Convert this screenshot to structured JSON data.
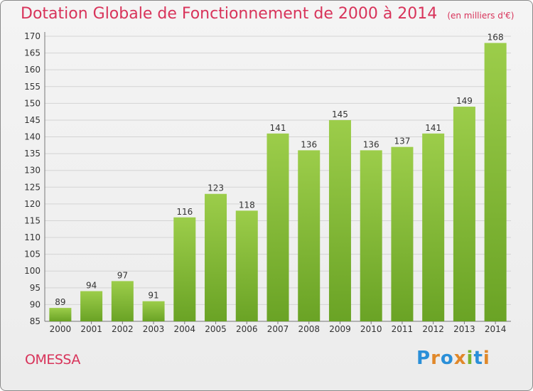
{
  "header": {
    "title": "Dotation Globale de Fonctionnement de 2000 à 2014",
    "units": "(en milliers d'€)"
  },
  "footer": {
    "commune": "OMESSA",
    "logo_text": "Proxiti"
  },
  "colors": {
    "accent": "#d8335a",
    "bar_top": "#9ccd4a",
    "bar_bottom": "#6aa325",
    "logo_letters": [
      "#2a8fd8",
      "#e0882a",
      "#2a8fd8",
      "#e0882a",
      "#7ab52e",
      "#2a8fd8",
      "#e0882a"
    ]
  },
  "chart_data": {
    "type": "bar",
    "title": "Dotation Globale de Fonctionnement de 2000 à 2014",
    "subtitle": "(en milliers d'€)",
    "categories": [
      "2000",
      "2001",
      "2002",
      "2003",
      "2004",
      "2005",
      "2006",
      "2007",
      "2008",
      "2009",
      "2010",
      "2011",
      "2012",
      "2013",
      "2014"
    ],
    "values": [
      89,
      94,
      97,
      91,
      116,
      123,
      118,
      141,
      136,
      145,
      136,
      137,
      141,
      149,
      168
    ],
    "ylim": [
      85,
      170
    ],
    "yticks": [
      85,
      90,
      95,
      100,
      105,
      110,
      115,
      120,
      125,
      130,
      135,
      140,
      145,
      150,
      155,
      160,
      165,
      170
    ],
    "grid": true,
    "legend": "none"
  }
}
